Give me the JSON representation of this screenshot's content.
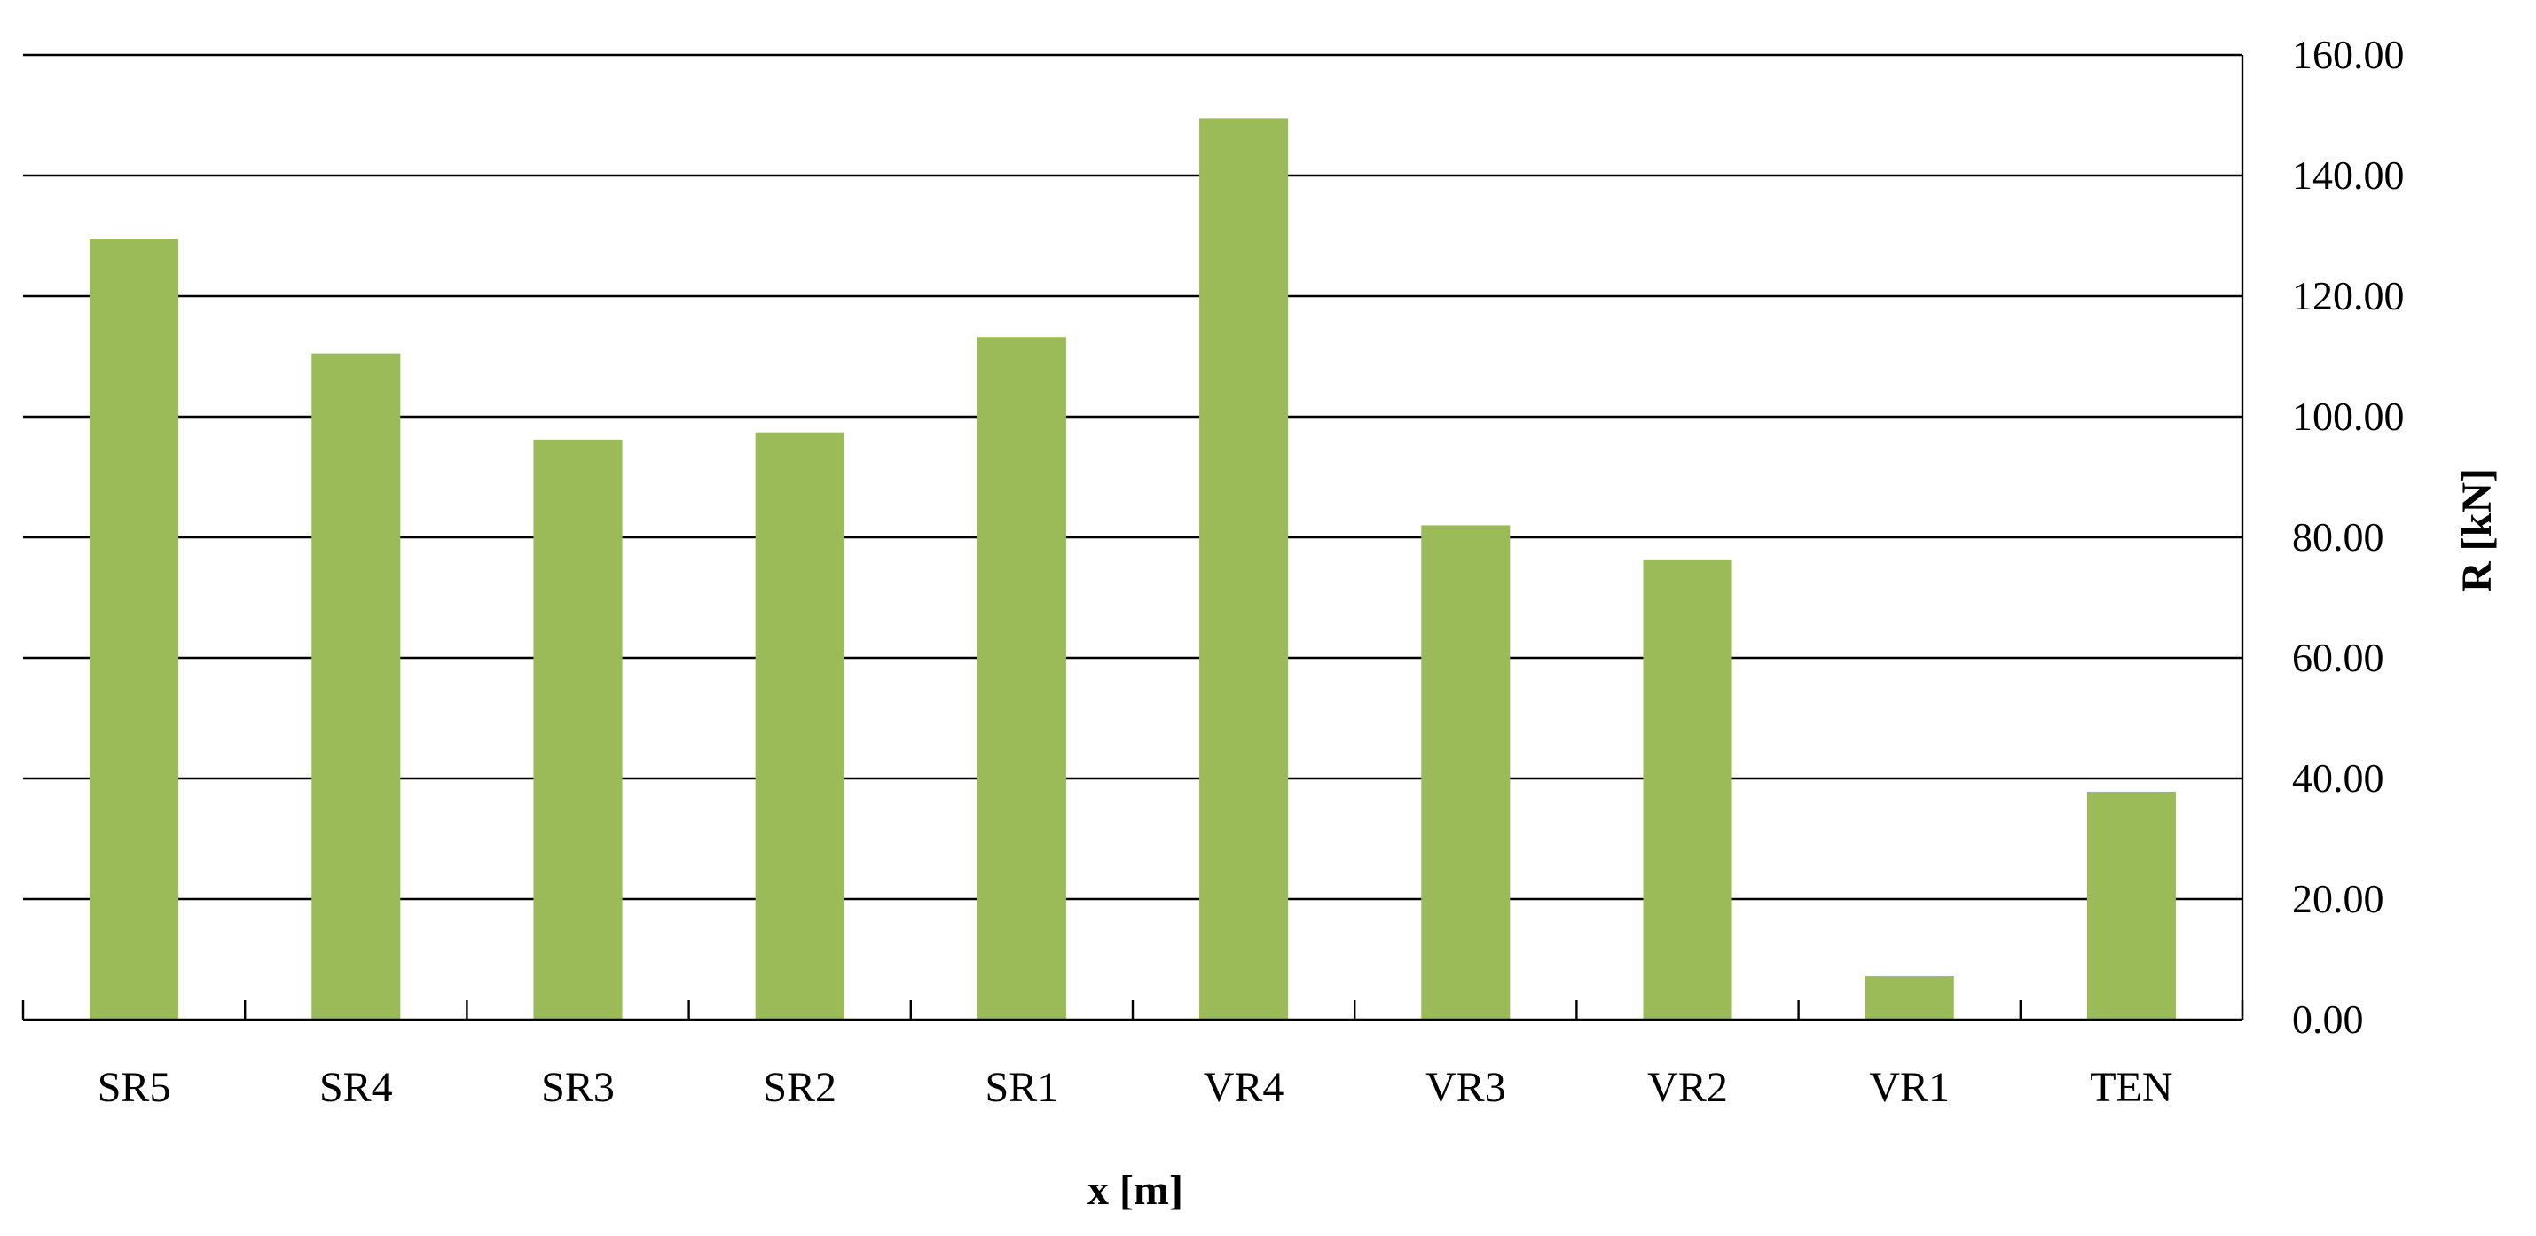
{
  "chart_data": {
    "type": "bar",
    "title": "",
    "xlabel": "x [m]",
    "ylabel": "R [kN]",
    "y_axis_position": "right",
    "ylim": [
      0,
      160
    ],
    "y_ticks": [
      "0.00",
      "20.00",
      "40.00",
      "60.00",
      "80.00",
      "100.00",
      "120.00",
      "140.00",
      "160.00"
    ],
    "grid": true,
    "legend": "none",
    "bar_color": "#9BBB59",
    "categories": [
      "SR5",
      "SR4",
      "SR3",
      "SR2",
      "SR1",
      "VR4",
      "VR3",
      "VR2",
      "VR1",
      "TEN"
    ],
    "values": [
      129.5,
      110.5,
      96.2,
      97.4,
      113.2,
      149.5,
      82.0,
      76.2,
      7.2,
      37.8
    ]
  }
}
